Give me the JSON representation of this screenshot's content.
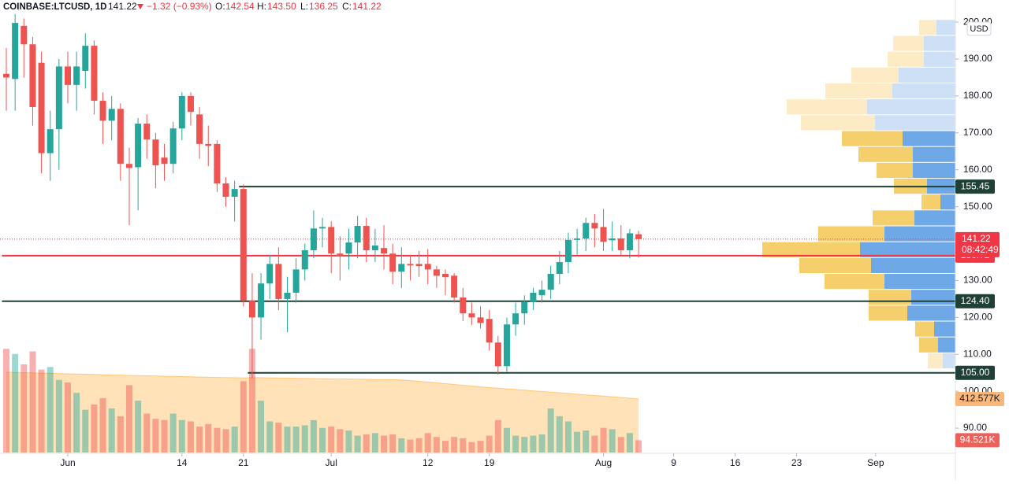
{
  "chart_data": {
    "type": "candlestick",
    "header": {
      "symbol": "COINBASE:LTCUSD, 1D",
      "last": 141.22,
      "change": "−1.32 (−0.93%)",
      "o_label": "O:",
      "open": 142.54,
      "h_label": "H:",
      "high": "143.50",
      "l_label": "L:",
      "low": 136.25,
      "c_label": "C:",
      "close": 141.22
    },
    "currency": "USD",
    "open": [
      186,
      184.6,
      199,
      194,
      189,
      164.5,
      171,
      188,
      183,
      186.8,
      193.6,
      178.7,
      173.3,
      176.5,
      161.6,
      160.7,
      172.5,
      168.2,
      163.3,
      161.6,
      171.2,
      180,
      175,
      167,
      167,
      156.3,
      152.7,
      154.8,
      124.5,
      120,
      129.2,
      134.5,
      125,
      126.7,
      133,
      138.2,
      144.1,
      144.5,
      137.3,
      137.3,
      140.3,
      144.8,
      138.2,
      138.8,
      137.3,
      132.4,
      134.5,
      134.5,
      134.5,
      133,
      131.8,
      131.3,
      125.4,
      121.1,
      120,
      119.6,
      113.2,
      106.8,
      118.1,
      121.1,
      124.3,
      126,
      127.5,
      131.8,
      135,
      141,
      141.4,
      145.6,
      144.5,
      140.9,
      141.4,
      138.2,
      142.54
    ],
    "high": [
      193,
      203,
      201,
      196,
      192,
      176,
      190,
      192,
      192,
      197,
      195,
      181,
      180,
      178,
      166,
      174,
      175,
      170,
      167,
      173,
      181,
      181,
      177,
      172,
      168,
      158,
      157,
      156,
      132,
      132,
      137,
      139,
      131,
      136,
      140,
      149,
      147,
      146,
      142,
      144,
      147.5,
      147,
      144,
      145,
      140,
      139,
      137,
      138,
      138.5,
      134,
      133,
      132,
      128,
      124,
      123,
      122,
      115,
      120,
      124,
      126,
      128,
      130,
      134,
      138,
      143,
      144,
      147,
      148,
      149.4,
      146,
      145,
      144,
      143.5
    ],
    "low": [
      176,
      176,
      185,
      172,
      159,
      157,
      160,
      178,
      176,
      182,
      175,
      167,
      168,
      157,
      145,
      149,
      163,
      155,
      157,
      159,
      168,
      172,
      163,
      161,
      154,
      150,
      146,
      123,
      103.5,
      114,
      125,
      122,
      116,
      124,
      130,
      136,
      139,
      132,
      130,
      133,
      136,
      135,
      135,
      133,
      129,
      128,
      130,
      131,
      129,
      128,
      126,
      124,
      119,
      118,
      117,
      111,
      104.5,
      105.3,
      115,
      118,
      122,
      124,
      125,
      129,
      132,
      137,
      138,
      139,
      138,
      138,
      137,
      136,
      136.25
    ],
    "close": [
      185,
      199.8,
      194,
      177,
      164.5,
      171,
      188,
      183,
      188,
      193.6,
      178.7,
      173.3,
      176.5,
      161.6,
      160.5,
      172.5,
      168.2,
      161.2,
      161.6,
      171.2,
      180,
      175.7,
      167,
      166.5,
      156.3,
      152.7,
      154.8,
      124.5,
      120,
      129.2,
      134.5,
      125,
      126.7,
      133,
      138.2,
      144.1,
      144.5,
      137.3,
      136.7,
      140.3,
      144.8,
      138.2,
      139.5,
      137.3,
      132.4,
      134.5,
      134.1,
      133.9,
      133,
      131.3,
      130.9,
      125.4,
      121.1,
      120,
      118.5,
      113.2,
      106.8,
      118.1,
      121.1,
      124.3,
      126.7,
      127.5,
      131.8,
      135,
      141,
      141.4,
      145.6,
      144.1,
      140.5,
      141.4,
      138.2,
      142.8,
      141.22
    ],
    "volume": [
      800000,
      760000,
      680000,
      780000,
      640000,
      660000,
      560000,
      540000,
      460000,
      330000,
      370000,
      420000,
      340000,
      280000,
      520000,
      400000,
      300000,
      260000,
      250000,
      300000,
      250000,
      240000,
      200000,
      220000,
      190000,
      180000,
      200000,
      550000,
      800000,
      400000,
      240000,
      230000,
      200000,
      200000,
      210000,
      250000,
      190000,
      200000,
      180000,
      170000,
      130000,
      140000,
      150000,
      130000,
      140000,
      110000,
      100000,
      110000,
      150000,
      120000,
      90000,
      120000,
      110000,
      80000,
      90000,
      130000,
      250000,
      190000,
      130000,
      120000,
      130000,
      140000,
      340000,
      280000,
      240000,
      160000,
      170000,
      130000,
      190000,
      180000,
      120000,
      150000,
      94521
    ],
    "volume_ma": [
      620000,
      618000,
      616000,
      614000,
      612000,
      611000,
      609000,
      607000,
      605000,
      604000,
      602000,
      600000,
      598000,
      597000,
      595000,
      593000,
      592000,
      590000,
      588000,
      587000,
      585000,
      584000,
      582000,
      580000,
      579000,
      578000,
      577000,
      576000,
      578000,
      577000,
      576000,
      575000,
      574000,
      573000,
      572000,
      571000,
      570000,
      569000,
      568000,
      567000,
      566000,
      565000,
      564000,
      563000,
      562000,
      560000,
      555000,
      549000,
      543000,
      537000,
      531000,
      525000,
      519000,
      513000,
      507000,
      501000,
      496000,
      491000,
      486000,
      481000,
      476000,
      471000,
      466000,
      461000,
      456000,
      450000,
      445000,
      440000,
      435000,
      430000,
      425000,
      419000,
      412577
    ],
    "volume_ma_label": "412.577K",
    "volume_label": "94.521K",
    "last_countdown": "08:42:49",
    "xlim": [
      -0.72,
      108.08
    ],
    "xticks": [
      {
        "value": 7,
        "label": "Jun"
      },
      {
        "value": 20,
        "label": "14"
      },
      {
        "value": 27,
        "label": "21"
      },
      {
        "value": 37,
        "label": "Jul"
      },
      {
        "value": 48,
        "label": "12"
      },
      {
        "value": 55,
        "label": "19"
      },
      {
        "value": 68,
        "label": "Aug"
      },
      {
        "value": 76,
        "label": "9"
      },
      {
        "value": 83,
        "label": "16"
      },
      {
        "value": 90,
        "label": "23"
      },
      {
        "value": 99,
        "label": "Sep"
      }
    ],
    "ylim": [
      83.4,
      206
    ],
    "yticks": [
      {
        "value": 200,
        "label": "200.00"
      },
      {
        "value": 190,
        "label": "190.00"
      },
      {
        "value": 180,
        "label": "180.00"
      },
      {
        "value": 170,
        "label": "170.00"
      },
      {
        "value": 160,
        "label": "160.00"
      },
      {
        "value": 150,
        "label": "150.00"
      },
      {
        "value": 140,
        "label": "140.00"
      },
      {
        "value": 130,
        "label": "130.00"
      },
      {
        "value": 120,
        "label": "120.00"
      },
      {
        "value": 110,
        "label": "110.00"
      },
      {
        "value": 100,
        "label": "100.00"
      },
      {
        "value": 90,
        "label": "90.00"
      }
    ],
    "volume_ylim": [
      0,
      3490000
    ],
    "levels": [
      {
        "value": 155.45,
        "start": 27,
        "color": "#1f4037"
      },
      {
        "value": 124.4,
        "label": "124.40",
        "start": 0,
        "color": "#1f4037"
      },
      {
        "value": 105,
        "label": "105.00",
        "start": 28,
        "color": "#1f4037"
      },
      {
        "value": 136.72,
        "start": 0,
        "color": "#f23645"
      }
    ],
    "volume_profile": {
      "bins": [
        200.6,
        196.3,
        192.0,
        187.7,
        183.4,
        179.1,
        174.8,
        170.5,
        166.2,
        161.9,
        157.6,
        153.3,
        149.0,
        144.7,
        140.4,
        136.1,
        131.8,
        127.5,
        123.2,
        118.9,
        114.6,
        110.3,
        106.0
      ],
      "up": [
        22,
        39,
        46,
        60,
        85,
        102,
        94,
        77,
        69,
        46,
        42,
        24,
        53,
        84,
        124,
        91,
        76,
        54,
        49,
        24,
        24,
        19
      ],
      "down": [
        24,
        40,
        40,
        72,
        80,
        112,
        102,
        67,
        54,
        54,
        36,
        19,
        52,
        90,
        121,
        107,
        90,
        56,
        61,
        27,
        22,
        16
      ],
      "xlim": [
        0,
        250
      ],
      "value_area": [
        110.3,
        170.5
      ]
    },
    "colors": {
      "up": "#26a69a",
      "down": "#ef5350"
    }
  }
}
